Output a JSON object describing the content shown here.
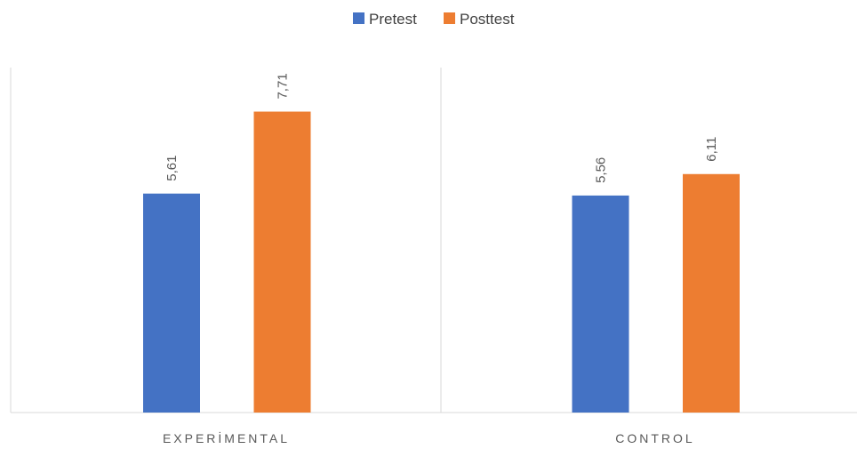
{
  "chart_data": {
    "type": "bar",
    "categories": [
      "EXPERİMENTAL",
      "CONTROL"
    ],
    "series": [
      {
        "name": "Pretest",
        "values": [
          5.61,
          5.56
        ],
        "labels": [
          "5,61",
          "5,56"
        ],
        "color": "#4472C4"
      },
      {
        "name": "Posttest",
        "values": [
          7.71,
          6.11
        ],
        "labels": [
          "7,71",
          "6,11"
        ],
        "color": "#ED7D31"
      }
    ],
    "title": "",
    "xlabel": "",
    "ylabel": "",
    "ylim": [
      0,
      9
    ],
    "grid": false,
    "legend_position": "top",
    "data_label_orientation": "vertical",
    "colors": {
      "axis": "#D9D9D9",
      "text": "#595959"
    }
  }
}
